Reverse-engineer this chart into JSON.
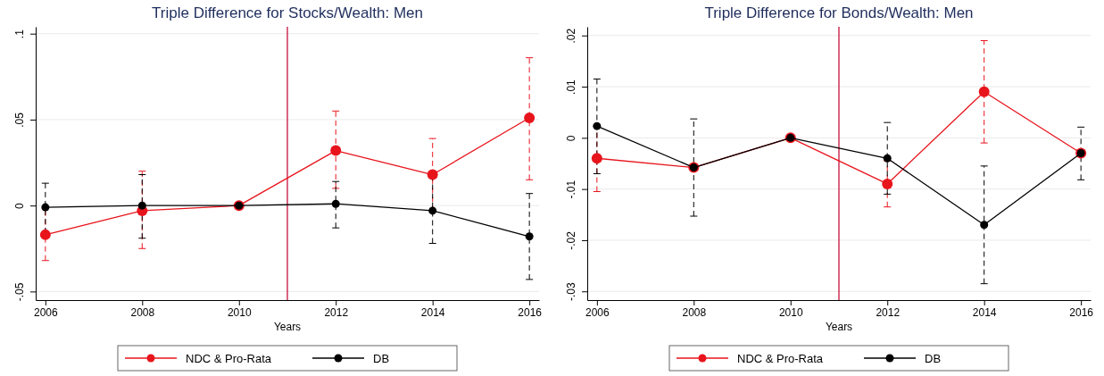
{
  "chart_data": [
    {
      "type": "line",
      "title": "Triple Difference for Stocks/Wealth: Men",
      "xlabel": "Years",
      "x": [
        2006,
        2008,
        2010,
        2012,
        2014,
        2016
      ],
      "series": [
        {
          "name": "NDC & Pro-Rata",
          "color": "#e8141c",
          "values": [
            -0.017,
            -0.003,
            0,
            0.032,
            0.018,
            0.051
          ],
          "errors": [
            [
              -0.032,
              -0.002
            ],
            [
              -0.025,
              0.02
            ],
            null,
            [
              0.01,
              0.055
            ],
            [
              -0.003,
              0.039
            ],
            [
              0.015,
              0.086
            ]
          ]
        },
        {
          "name": "DB",
          "color": "#000000",
          "values": [
            -0.001,
            0,
            0,
            0.001,
            -0.003,
            -0.018
          ],
          "errors": [
            [
              -0.016,
              0.013
            ],
            [
              -0.019,
              0.018
            ],
            null,
            [
              -0.013,
              0.014
            ],
            [
              -0.022,
              0.016
            ],
            [
              -0.043,
              0.007
            ]
          ]
        }
      ],
      "xlim": [
        2005.8,
        2016.2
      ],
      "xticks": [
        2006,
        2008,
        2010,
        2012,
        2014,
        2016
      ],
      "ylim": [
        -0.055,
        0.104
      ],
      "yticks": [
        {
          "value": -0.05,
          "label": "-.05"
        },
        {
          "value": 0,
          "label": "0"
        },
        {
          "value": 0.05,
          "label": ".05"
        },
        {
          "value": 0.1,
          "label": ".1"
        }
      ],
      "ref_lines": [
        {
          "axis": "x",
          "value": 2011,
          "color": "#c8103c"
        }
      ],
      "grid": "y",
      "legend": "bottom",
      "marker": "circle",
      "line_style": "solid"
    },
    {
      "type": "line",
      "title": "Triple Difference for Bonds/Wealth: Men",
      "xlabel": "Years",
      "x": [
        2006,
        2008,
        2010,
        2012,
        2014,
        2016
      ],
      "series": [
        {
          "name": "NDC & Pro-Rata",
          "color": "#e8141c",
          "values": [
            -0.004,
            -0.0058,
            0,
            -0.009,
            0.009,
            -0.003
          ],
          "errors": [
            [
              -0.0105,
              0.0025
            ],
            null,
            null,
            [
              -0.0135,
              -0.0045
            ],
            [
              -0.001,
              0.019
            ],
            null
          ]
        },
        {
          "name": "DB",
          "color": "#000000",
          "values": [
            0.0023,
            -0.0058,
            0,
            -0.004,
            -0.017,
            -0.003
          ],
          "errors": [
            [
              -0.007,
              0.0115
            ],
            [
              -0.0153,
              0.0037
            ],
            null,
            [
              -0.011,
              0.003
            ],
            [
              -0.0285,
              -0.0055
            ],
            [
              -0.0082,
              0.0021
            ]
          ]
        }
      ],
      "xlim": [
        2005.8,
        2016.2
      ],
      "xticks": [
        2006,
        2008,
        2010,
        2012,
        2014,
        2016
      ],
      "ylim": [
        -0.0317,
        0.0217
      ],
      "yticks": [
        {
          "value": -0.03,
          "label": "-.03"
        },
        {
          "value": -0.02,
          "label": "-.02"
        },
        {
          "value": -0.01,
          "label": "-.01"
        },
        {
          "value": 0,
          "label": "0"
        },
        {
          "value": 0.01,
          "label": ".01"
        },
        {
          "value": 0.02,
          "label": ".02"
        }
      ],
      "ref_lines": [
        {
          "axis": "x",
          "value": 2011,
          "color": "#c8103c"
        }
      ],
      "grid": "y",
      "legend": "bottom",
      "marker": "circle",
      "line_style": "solid"
    }
  ]
}
